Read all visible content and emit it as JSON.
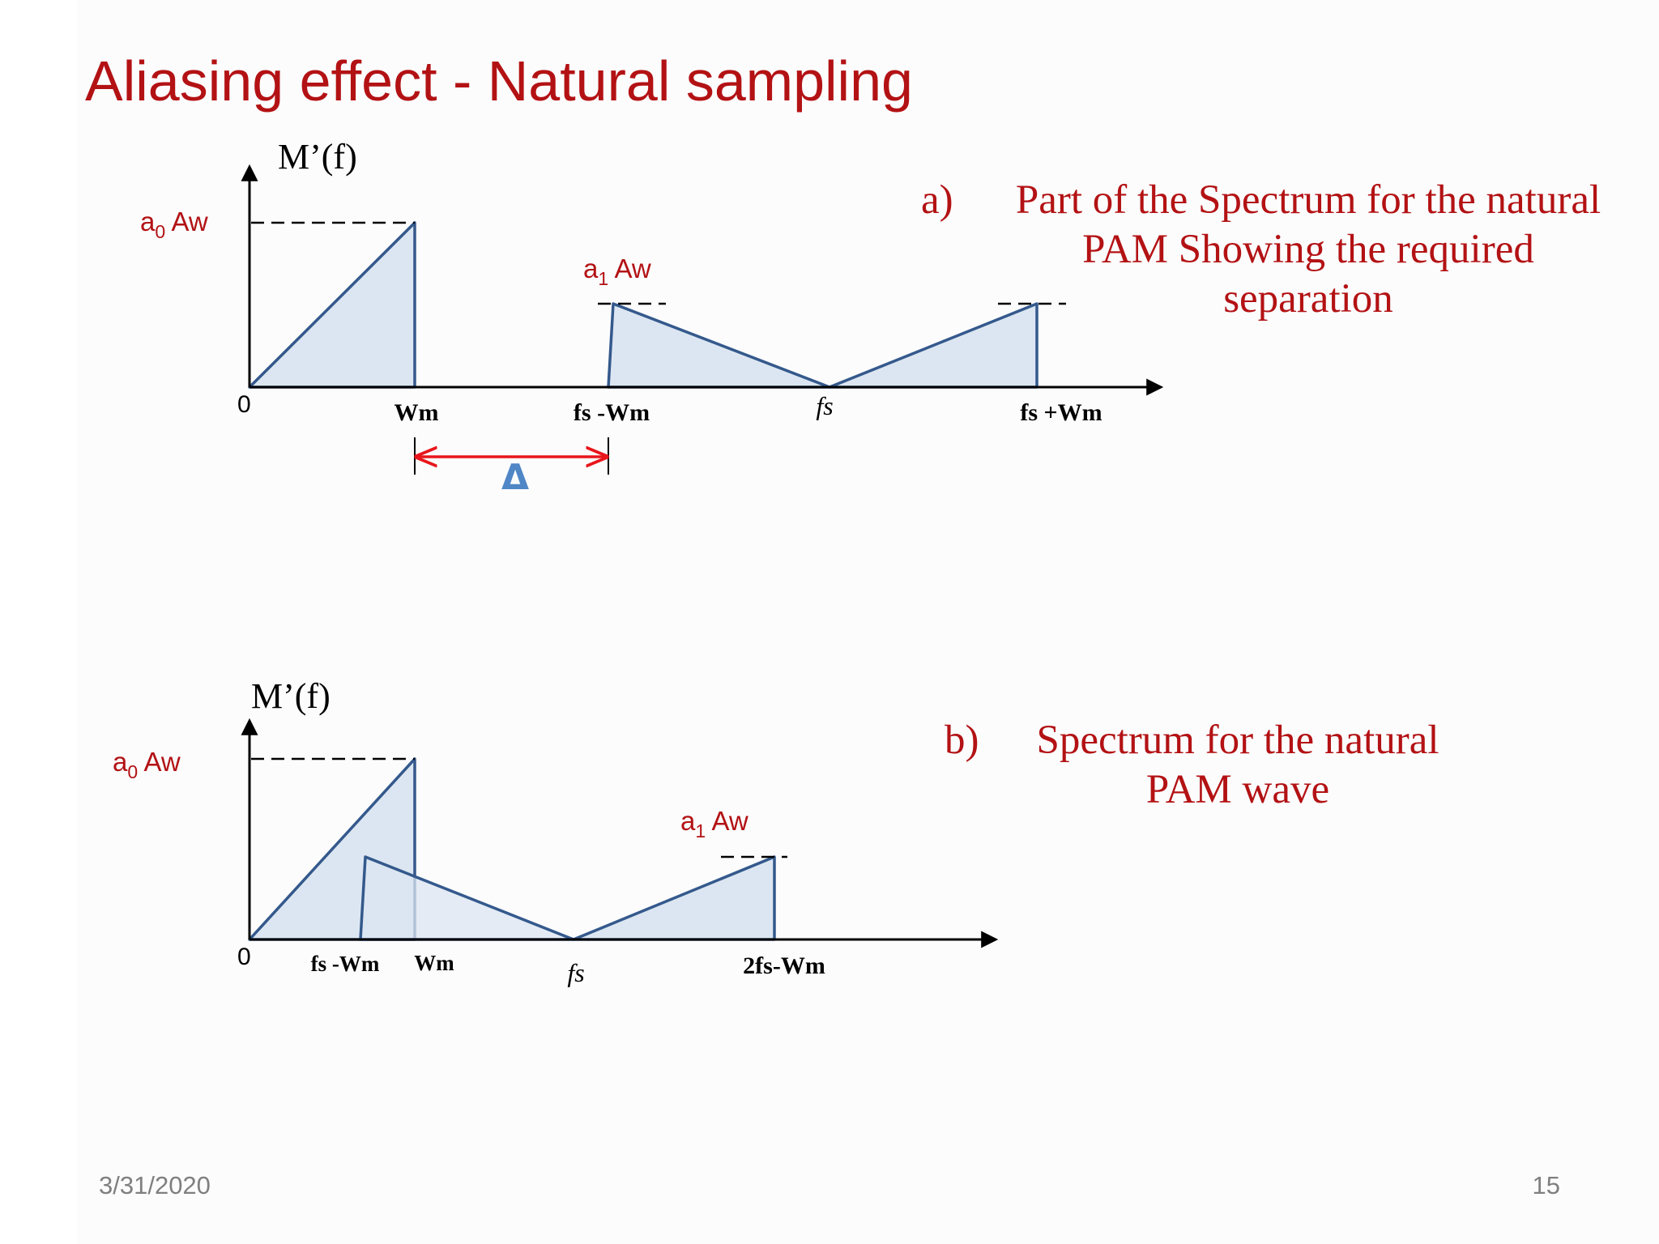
{
  "slide": {
    "title": "Aliasing effect - Natural sampling",
    "date": "3/31/2020",
    "page_number": "15"
  },
  "colors": {
    "title": "#b31214",
    "caption": "#b31214",
    "spectrum_fill": "#dce6f2",
    "spectrum_stroke": "#34598c",
    "separation_arrow": "#e8161b",
    "delta_symbol": "#4f86c6",
    "axis": "#000000",
    "footer": "#7f7f7f"
  },
  "diagram_a": {
    "ylabel": "M’(f)",
    "amp0_label": {
      "base": "a",
      "sub": "0",
      "rest": " Aw"
    },
    "amp1_label": {
      "base": "a",
      "sub": "1",
      "rest": " Aw"
    },
    "origin_label": "0",
    "ticks": [
      "Wm",
      "fs -Wm",
      "fs",
      "fs +Wm"
    ],
    "separation_symbol": "Δ",
    "caption": {
      "label": "a)",
      "lines": [
        "Part of the Spectrum for the natural",
        "PAM Showing the required",
        "separation"
      ]
    }
  },
  "diagram_b": {
    "ylabel": "M’(f)",
    "amp0_label": {
      "base": "a",
      "sub": "0",
      "rest": " Aw"
    },
    "amp1_label": {
      "base": "a",
      "sub": "1",
      "rest": " Aw"
    },
    "origin_label": "0",
    "ticks": [
      "fs -Wm",
      "Wm",
      "fs",
      "2fs-Wm"
    ],
    "caption": {
      "label": "b)",
      "lines": [
        "Spectrum for the natural",
        "PAM wave"
      ]
    }
  }
}
